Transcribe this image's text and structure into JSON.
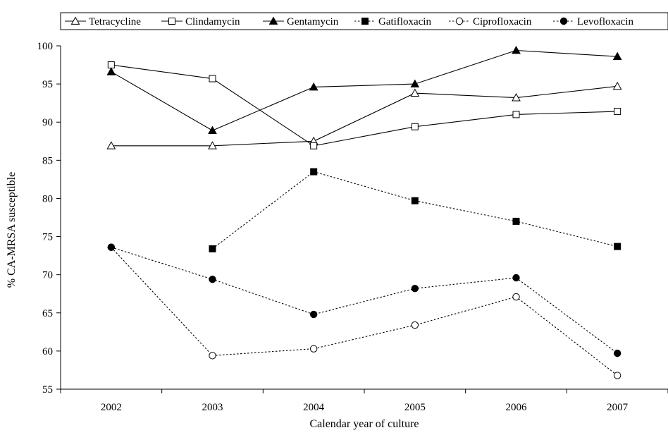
{
  "chart_data": {
    "type": "line",
    "title": "",
    "xlabel": "Calendar year of culture",
    "ylabel": "% CA-MRSA susceptible",
    "categories": [
      "2002",
      "2003",
      "2004",
      "2005",
      "2006",
      "2007"
    ],
    "ylim": [
      55,
      100
    ],
    "yticks": [
      "55",
      "60",
      "65",
      "70",
      "75",
      "80",
      "85",
      "90",
      "95",
      "100"
    ],
    "grid": false,
    "legend_position": "top",
    "series": [
      {
        "name": "Tetracycline",
        "marker": "triangle-open",
        "line": "solid",
        "values": [
          86.9,
          86.9,
          87.5,
          93.8,
          93.2,
          94.7
        ]
      },
      {
        "name": "Clindamycin",
        "marker": "square-open",
        "line": "solid",
        "values": [
          97.5,
          95.7,
          86.9,
          89.4,
          91.0,
          91.4
        ]
      },
      {
        "name": "Gentamycin",
        "marker": "triangle-filled",
        "line": "solid",
        "values": [
          96.6,
          88.9,
          94.6,
          95.0,
          99.4,
          98.6
        ]
      },
      {
        "name": "Gatifloxacin",
        "marker": "square-filled",
        "line": "dotted",
        "values": [
          null,
          73.4,
          83.5,
          79.7,
          77.0,
          73.7
        ]
      },
      {
        "name": "Ciprofloxacin",
        "marker": "circle-open",
        "line": "dotted",
        "values": [
          73.6,
          59.4,
          60.3,
          63.4,
          67.1,
          56.8
        ]
      },
      {
        "name": "Levofloxacin",
        "marker": "circle-filled",
        "line": "dotted",
        "values": [
          73.6,
          69.4,
          64.8,
          68.2,
          69.6,
          59.7
        ]
      }
    ]
  }
}
